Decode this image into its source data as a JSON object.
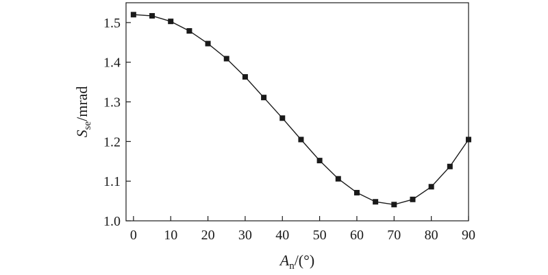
{
  "chart_data": {
    "type": "line",
    "title": "",
    "xlabel": {
      "main": "A",
      "sub": "n",
      "rest": "/(°)"
    },
    "ylabel": {
      "main": "S",
      "sub": "se",
      "rest": "/mrad"
    },
    "xlim": [
      -2,
      90
    ],
    "ylim": [
      1.0,
      1.55
    ],
    "x_ticks": [
      0,
      10,
      20,
      30,
      40,
      50,
      60,
      70,
      80,
      90
    ],
    "x_tick_labels": [
      "0",
      "10",
      "20",
      "30",
      "40",
      "50",
      "60",
      "70",
      "80",
      "90"
    ],
    "y_ticks": [
      1.0,
      1.1,
      1.2,
      1.3,
      1.4,
      1.5
    ],
    "y_tick_labels": [
      "1.0",
      "1.1",
      "1.2",
      "1.3",
      "1.4",
      "1.5"
    ],
    "grid": false,
    "marker": "square",
    "series": [
      {
        "x": [
          0,
          5,
          10,
          15,
          20,
          25,
          30,
          35,
          40,
          45,
          50,
          55,
          60,
          65,
          70,
          75,
          80,
          85,
          90
        ],
        "values": [
          1.52,
          1.517,
          1.503,
          1.479,
          1.447,
          1.409,
          1.363,
          1.311,
          1.259,
          1.205,
          1.152,
          1.106,
          1.071,
          1.048,
          1.041,
          1.054,
          1.086,
          1.137,
          1.205
        ]
      }
    ]
  }
}
